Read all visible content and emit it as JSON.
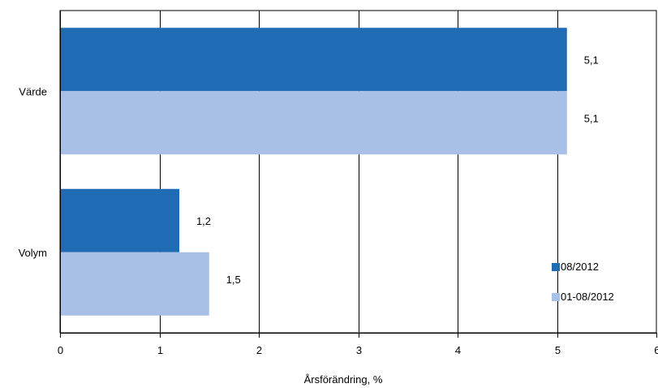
{
  "chart_data": {
    "type": "bar",
    "orientation": "horizontal",
    "categories": [
      "Värde",
      "Volym"
    ],
    "series": [
      {
        "name": "08/2012",
        "values": [
          5.1,
          1.2
        ],
        "labels": [
          "5,1",
          "1,2"
        ],
        "color": "#1f6bb4"
      },
      {
        "name": "01-08/2012",
        "values": [
          5.1,
          1.5
        ],
        "labels": [
          "5,1",
          "1,5"
        ],
        "color": "#a8bfe8"
      }
    ],
    "xlabel": "Årsförändring, %",
    "ylabel": "",
    "xlim": [
      0,
      6
    ],
    "xticks": [
      0,
      1,
      2,
      3,
      4,
      5,
      6
    ],
    "xtick_labels": [
      "0",
      "1",
      "2",
      "3",
      "4",
      "5",
      "6"
    ],
    "grid": "vertical",
    "legend_position": "bottom-right"
  }
}
